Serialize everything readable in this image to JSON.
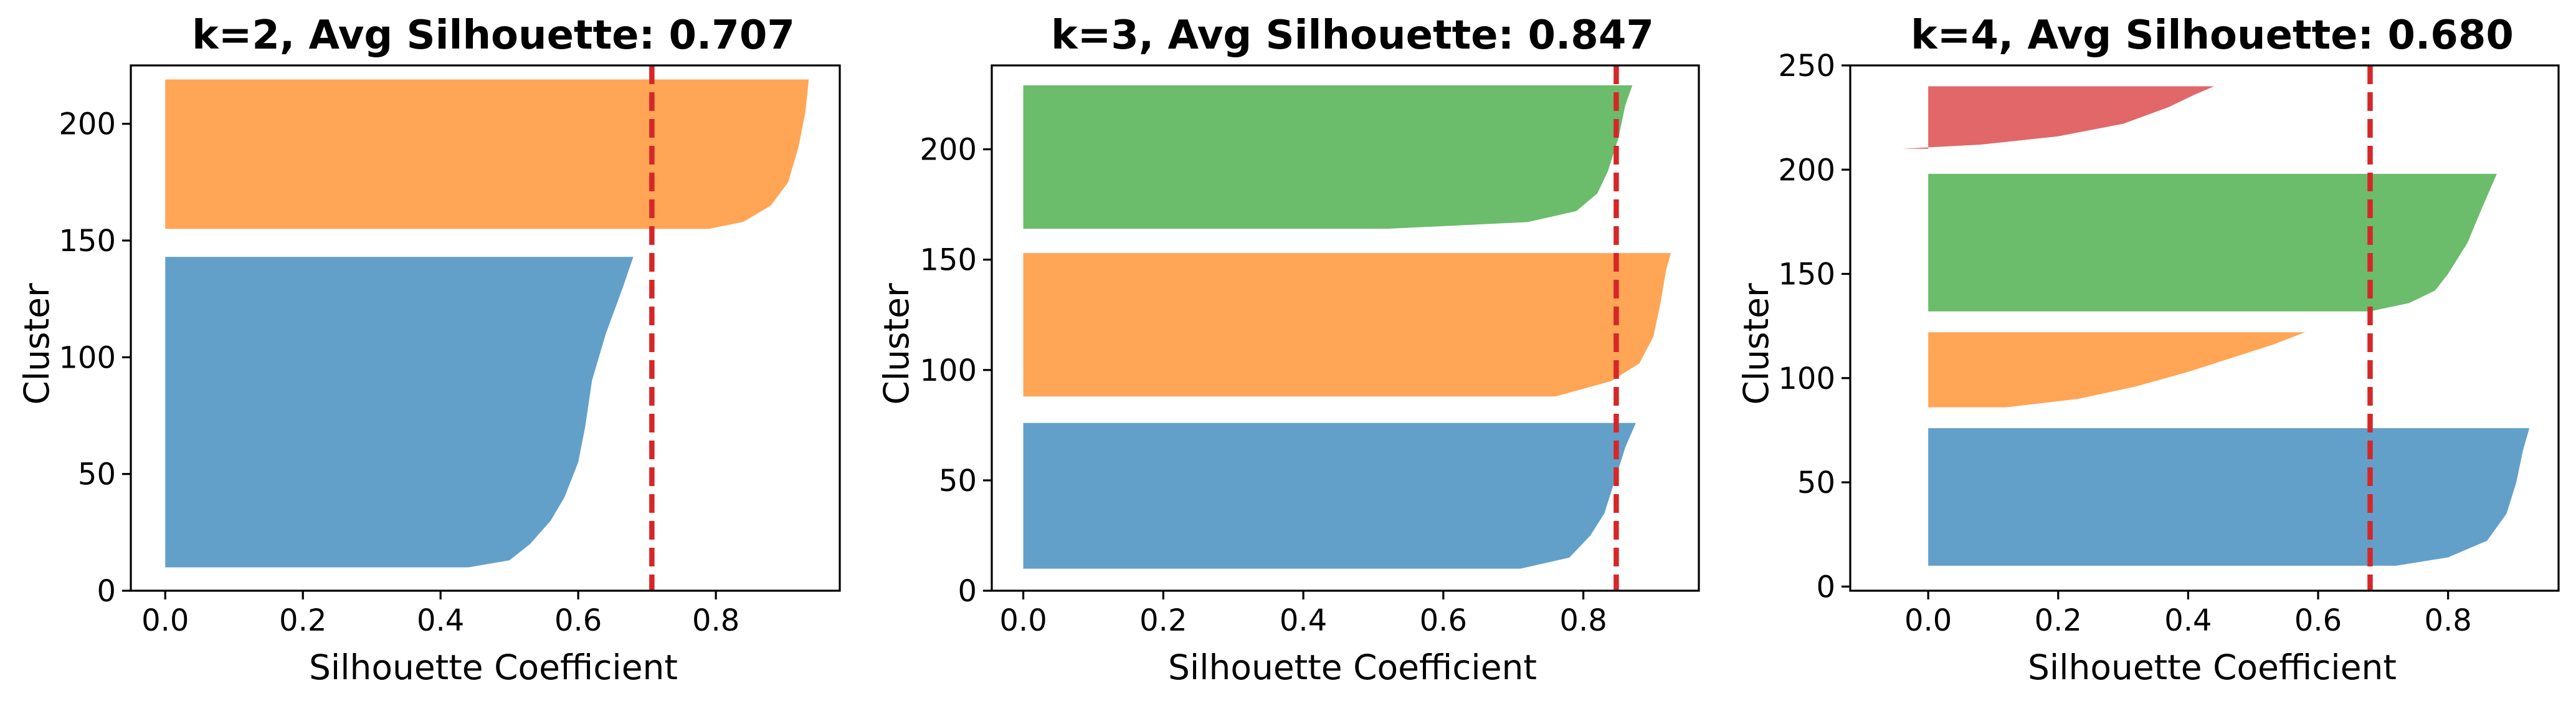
{
  "chart_data": [
    {
      "type": "silhouette",
      "title": "k=2, Avg Silhouette: 0.707",
      "xlabel": "Silhouette Coefficient",
      "ylabel": "Cluster",
      "xlim": [
        -0.05,
        0.98
      ],
      "ylim": [
        0,
        225
      ],
      "xticks": [
        0.0,
        0.2,
        0.4,
        0.6,
        0.8
      ],
      "yticks": [
        0,
        50,
        100,
        150,
        200
      ],
      "average": 0.707,
      "clusters": [
        {
          "color": "#1f77b4",
          "y_start": 10,
          "y_end": 143,
          "profile": [
            [
              10,
              0.44
            ],
            [
              13,
              0.5
            ],
            [
              20,
              0.53
            ],
            [
              30,
              0.56
            ],
            [
              40,
              0.58
            ],
            [
              55,
              0.6
            ],
            [
              70,
              0.61
            ],
            [
              90,
              0.62
            ],
            [
              110,
              0.64
            ],
            [
              130,
              0.665
            ],
            [
              143,
              0.68
            ]
          ]
        },
        {
          "color": "#ff7f0e",
          "y_start": 155,
          "y_end": 219,
          "profile": [
            [
              155,
              0.79
            ],
            [
              158,
              0.84
            ],
            [
              165,
              0.88
            ],
            [
              175,
              0.905
            ],
            [
              190,
              0.92
            ],
            [
              205,
              0.93
            ],
            [
              219,
              0.935
            ]
          ]
        }
      ]
    },
    {
      "type": "silhouette",
      "title": "k=3, Avg Silhouette: 0.847",
      "xlabel": "Silhouette Coefficient",
      "ylabel": "Cluster",
      "xlim": [
        -0.045,
        0.965
      ],
      "ylim": [
        0,
        238
      ],
      "xticks": [
        0.0,
        0.2,
        0.4,
        0.6,
        0.8
      ],
      "yticks": [
        0,
        50,
        100,
        150,
        200
      ],
      "average": 0.847,
      "clusters": [
        {
          "color": "#1f77b4",
          "y_start": 10,
          "y_end": 76,
          "profile": [
            [
              10,
              0.71
            ],
            [
              15,
              0.78
            ],
            [
              25,
              0.81
            ],
            [
              35,
              0.83
            ],
            [
              50,
              0.845
            ],
            [
              65,
              0.86
            ],
            [
              76,
              0.875
            ]
          ]
        },
        {
          "color": "#ff7f0e",
          "y_start": 88,
          "y_end": 153,
          "profile": [
            [
              88,
              0.76
            ],
            [
              95,
              0.84
            ],
            [
              103,
              0.88
            ],
            [
              115,
              0.9
            ],
            [
              130,
              0.91
            ],
            [
              145,
              0.918
            ],
            [
              153,
              0.925
            ]
          ]
        },
        {
          "color": "#2ca02c",
          "y_start": 164,
          "y_end": 229,
          "profile": [
            [
              164,
              0.52
            ],
            [
              167,
              0.72
            ],
            [
              172,
              0.79
            ],
            [
              180,
              0.82
            ],
            [
              190,
              0.835
            ],
            [
              205,
              0.85
            ],
            [
              220,
              0.86
            ],
            [
              229,
              0.87
            ]
          ]
        }
      ]
    },
    {
      "type": "silhouette",
      "title": "k=4, Avg Silhouette: 0.680",
      "xlabel": "Silhouette Coefficient",
      "ylabel": "Cluster",
      "xlim": [
        -0.12,
        0.97
      ],
      "ylim": [
        -2,
        250
      ],
      "xticks": [
        0.0,
        0.2,
        0.4,
        0.6,
        0.8
      ],
      "yticks": [
        0,
        50,
        100,
        150,
        200,
        250
      ],
      "average": 0.68,
      "clusters": [
        {
          "color": "#1f77b4",
          "y_start": 10,
          "y_end": 76,
          "profile": [
            [
              10,
              0.72
            ],
            [
              14,
              0.8
            ],
            [
              22,
              0.86
            ],
            [
              35,
              0.89
            ],
            [
              50,
              0.905
            ],
            [
              65,
              0.915
            ],
            [
              76,
              0.925
            ]
          ]
        },
        {
          "color": "#ff7f0e",
          "y_start": 86,
          "y_end": 122,
          "profile": [
            [
              86,
              0.12
            ],
            [
              90,
              0.23
            ],
            [
              96,
              0.32
            ],
            [
              103,
              0.4
            ],
            [
              110,
              0.47
            ],
            [
              116,
              0.53
            ],
            [
              122,
              0.58
            ]
          ]
        },
        {
          "color": "#2ca02c",
          "y_start": 132,
          "y_end": 198,
          "profile": [
            [
              132,
              0.68
            ],
            [
              136,
              0.74
            ],
            [
              142,
              0.78
            ],
            [
              150,
              0.8
            ],
            [
              165,
              0.83
            ],
            [
              180,
              0.85
            ],
            [
              198,
              0.875
            ]
          ]
        },
        {
          "color": "#d62728",
          "y_start": 210,
          "y_end": 240,
          "profile": [
            [
              210,
              -0.04
            ],
            [
              212,
              0.08
            ],
            [
              216,
              0.2
            ],
            [
              222,
              0.3
            ],
            [
              230,
              0.37
            ],
            [
              236,
              0.41
            ],
            [
              240,
              0.44
            ]
          ]
        }
      ]
    }
  ]
}
